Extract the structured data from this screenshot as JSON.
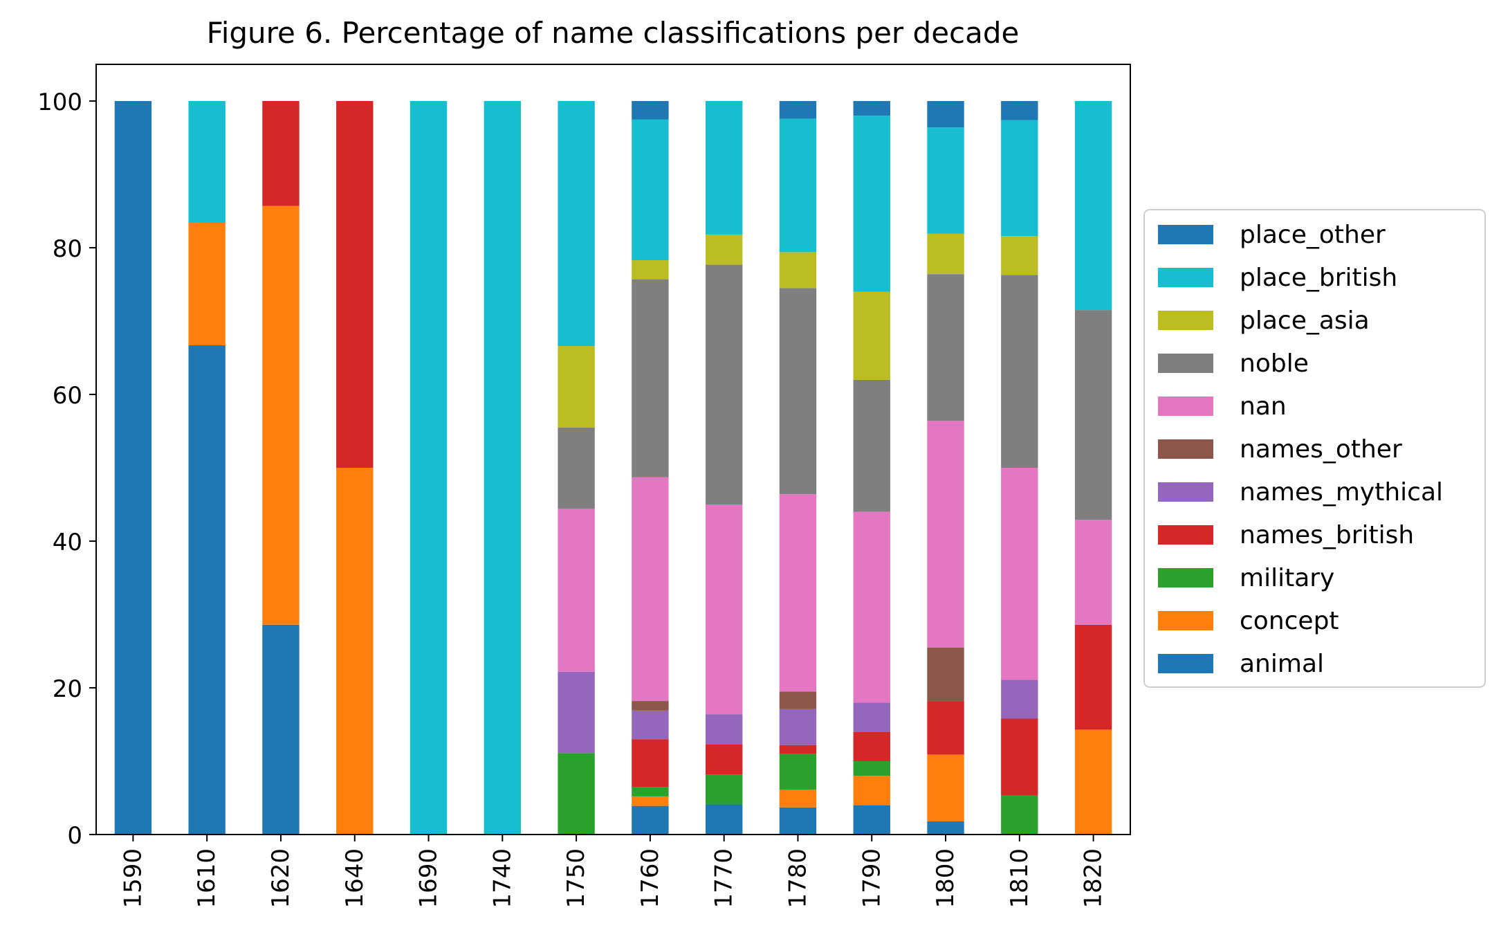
{
  "chart_data": {
    "type": "bar",
    "stacked": true,
    "title": "Figure 6. Percentage of name classifications per decade",
    "xlabel": "",
    "ylabel": "",
    "ylim": [
      0,
      105
    ],
    "yticks": [
      0,
      20,
      40,
      60,
      80,
      100
    ],
    "grid": false,
    "legend_position": "center-right-outside",
    "categories": [
      "1590",
      "1610",
      "1620",
      "1640",
      "1690",
      "1740",
      "1750",
      "1760",
      "1770",
      "1780",
      "1790",
      "1800",
      "1810",
      "1820"
    ],
    "series": [
      {
        "name": "animal",
        "color": "#1f77b4",
        "values": [
          100,
          66.7,
          28.6,
          0,
          0,
          0,
          0,
          3.9,
          4.1,
          3.7,
          4.0,
          1.8,
          0,
          0
        ]
      },
      {
        "name": "concept",
        "color": "#ff7f0e",
        "values": [
          0,
          16.7,
          57.1,
          50,
          0,
          0,
          0,
          1.3,
          0,
          2.4,
          4.0,
          9.1,
          0,
          14.3
        ]
      },
      {
        "name": "military",
        "color": "#2ca02c",
        "values": [
          0,
          0,
          0,
          0,
          0,
          0,
          11.1,
          1.3,
          4.1,
          4.9,
          2.0,
          0,
          5.3,
          0
        ]
      },
      {
        "name": "names_british",
        "color": "#d62728",
        "values": [
          0,
          0,
          14.3,
          50,
          0,
          0,
          0,
          6.5,
          4.1,
          1.2,
          4.0,
          7.3,
          10.5,
          14.3
        ]
      },
      {
        "name": "names_mythical",
        "color": "#9467bd",
        "values": [
          0,
          0,
          0,
          0,
          0,
          0,
          11.1,
          3.9,
          4.1,
          4.9,
          4.0,
          0,
          5.3,
          0
        ]
      },
      {
        "name": "names_other",
        "color": "#8c564b",
        "values": [
          0,
          0,
          0,
          0,
          0,
          0,
          0,
          1.3,
          0,
          2.4,
          0,
          7.3,
          0,
          0
        ]
      },
      {
        "name": "nan",
        "color": "#e377c2",
        "values": [
          0,
          0,
          0,
          0,
          0,
          0,
          22.2,
          30.5,
          28.6,
          26.9,
          26.0,
          30.9,
          28.9,
          14.3
        ]
      },
      {
        "name": "noble",
        "color": "#7f7f7f",
        "values": [
          0,
          0,
          0,
          0,
          0,
          0,
          11.1,
          27.0,
          32.7,
          28.1,
          18.0,
          20.0,
          26.3,
          28.6
        ]
      },
      {
        "name": "place_asia",
        "color": "#bcbd22",
        "values": [
          0,
          0,
          0,
          0,
          0,
          0,
          11.1,
          2.6,
          4.1,
          4.9,
          12.0,
          5.5,
          5.3,
          0
        ]
      },
      {
        "name": "place_british",
        "color": "#17becf",
        "values": [
          0,
          16.6,
          0,
          0,
          100,
          100,
          33.4,
          19.2,
          18.2,
          18.2,
          24.0,
          14.5,
          15.8,
          28.5
        ]
      },
      {
        "name": "place_other",
        "color": "#1f77b4",
        "values": [
          0,
          0,
          0,
          0,
          0,
          0,
          0,
          2.5,
          0,
          2.4,
          2.0,
          3.6,
          2.6,
          0
        ]
      }
    ]
  }
}
